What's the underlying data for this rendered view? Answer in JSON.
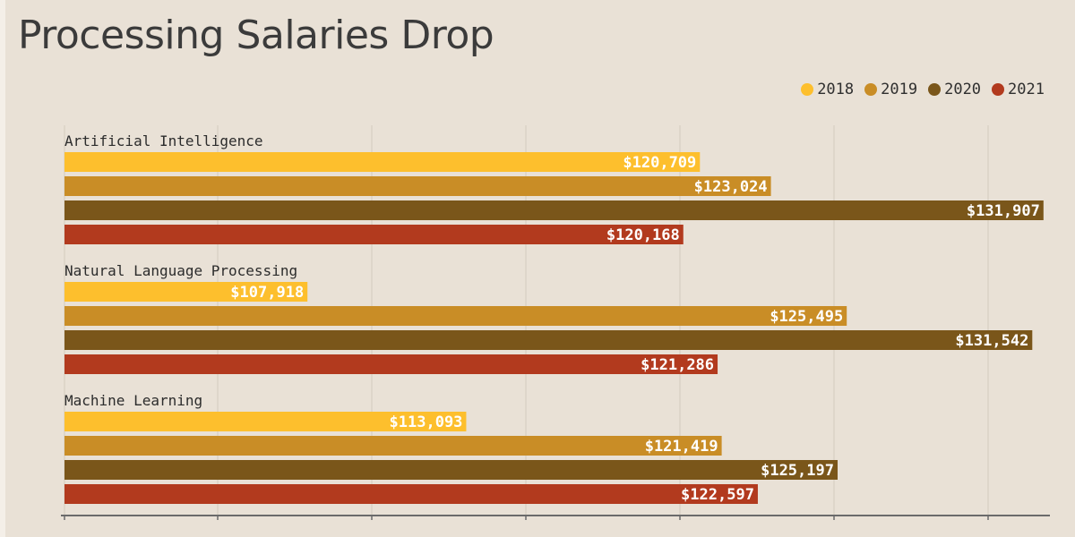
{
  "title_lines": [
    "Processing Salaries Drop"
  ],
  "chart_data": {
    "type": "bar",
    "orientation": "horizontal",
    "title": "Processing Salaries Drop",
    "categories": [
      "Artificial Intelligence",
      "Natural Language Processing",
      "Machine Learning"
    ],
    "series": [
      {
        "name": "2018",
        "color": "#fdbf2d",
        "values": [
          120709,
          107918,
          113093
        ],
        "labels": [
          "$120,709",
          "$107,918",
          "$113,093"
        ]
      },
      {
        "name": "2019",
        "color": "#c98d26",
        "values": [
          123024,
          125495,
          121419
        ],
        "labels": [
          "$123,024",
          "$125,495",
          "$121,419"
        ]
      },
      {
        "name": "2020",
        "color": "#7a561a",
        "values": [
          131907,
          131542,
          125197
        ],
        "labels": [
          "$131,907",
          "$131,542",
          "$125,197"
        ]
      },
      {
        "name": "2021",
        "color": "#b23a1e",
        "values": [
          120168,
          121286,
          122597
        ],
        "labels": [
          "$120,168",
          "$121,286",
          "$122,597"
        ]
      }
    ],
    "xlim": [
      100000,
      132000
    ],
    "grid": true,
    "legend_position": "top-right"
  }
}
